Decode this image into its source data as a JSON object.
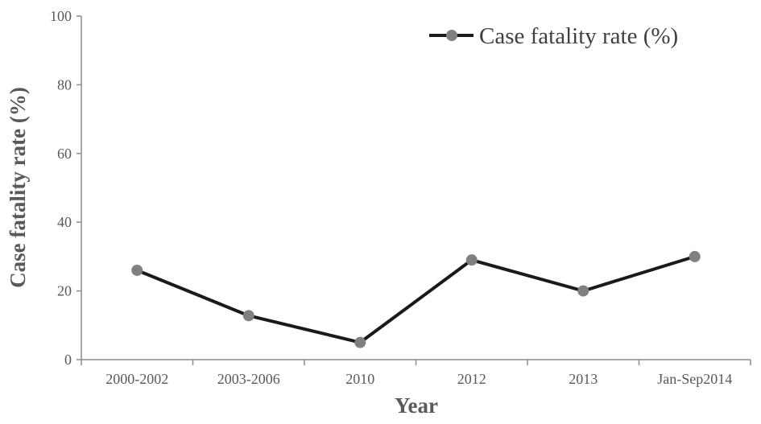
{
  "chart_data": {
    "type": "line",
    "categories": [
      "2000-2002",
      "2003-2006",
      "2010",
      "2012",
      "2013",
      "Jan-Sep2014"
    ],
    "series": [
      {
        "name": "Case fatality rate (%)",
        "values": [
          26,
          12.8,
          5,
          29,
          20,
          30
        ]
      }
    ],
    "xlabel": "Year",
    "ylabel": "Case fatality rate (%)",
    "ylim": [
      0,
      100
    ],
    "yticks": [
      0,
      20,
      40,
      60,
      80,
      100
    ],
    "grid": false,
    "legend_position": "top-right",
    "colors": {
      "line": "#1a1a1a",
      "marker": "#808080",
      "axis": "#8c8c8c"
    }
  }
}
